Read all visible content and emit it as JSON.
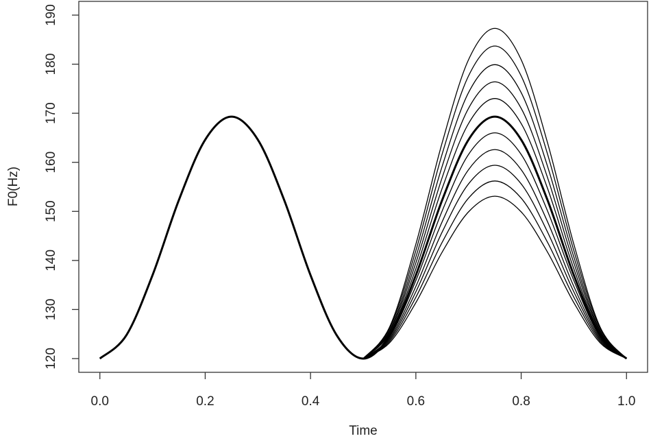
{
  "chart_data": {
    "type": "line",
    "xlabel": "Time",
    "ylabel": "F0(Hz)",
    "x": [
      0,
      0.05,
      0.1,
      0.15,
      0.2,
      0.25,
      0.3,
      0.35,
      0.4,
      0.45,
      0.5,
      0.55,
      0.6,
      0.65,
      0.7,
      0.75,
      0.8,
      0.85,
      0.9,
      0.95,
      1
    ],
    "series": [
      {
        "color": "#000000",
        "linewidth": 3,
        "values": [
          120,
          124.7,
          137.0,
          152.3,
          164.6,
          169.3,
          164.6,
          152.3,
          137.0,
          124.7,
          120,
          124.7,
          137.0,
          152.3,
          164.6,
          169.3,
          164.6,
          152.3,
          137.0,
          124.7,
          120
        ]
      },
      {
        "color": "#000000",
        "linewidth": 1.3,
        "values": [
          null,
          null,
          null,
          null,
          null,
          null,
          null,
          null,
          null,
          null,
          120,
          126.4,
          143.3,
          164.0,
          180.9,
          187.3,
          180.9,
          164.0,
          143.3,
          126.4,
          120
        ]
      },
      {
        "color": "#000000",
        "linewidth": 1.3,
        "values": [
          null,
          null,
          null,
          null,
          null,
          null,
          null,
          null,
          null,
          null,
          120,
          126.1,
          142.0,
          161.7,
          177.6,
          183.7,
          177.6,
          161.7,
          142.0,
          126.1,
          120
        ]
      },
      {
        "color": "#000000",
        "linewidth": 1.3,
        "values": [
          null,
          null,
          null,
          null,
          null,
          null,
          null,
          null,
          null,
          null,
          120,
          125.7,
          140.7,
          159.2,
          174.2,
          179.9,
          174.2,
          159.2,
          140.7,
          125.7,
          120
        ]
      },
      {
        "color": "#000000",
        "linewidth": 1.3,
        "values": [
          null,
          null,
          null,
          null,
          null,
          null,
          null,
          null,
          null,
          null,
          120,
          125.4,
          139.5,
          156.9,
          171.0,
          176.4,
          171.0,
          156.9,
          139.5,
          125.4,
          120
        ]
      },
      {
        "color": "#000000",
        "linewidth": 1.3,
        "values": [
          null,
          null,
          null,
          null,
          null,
          null,
          null,
          null,
          null,
          null,
          120,
          125.1,
          138.3,
          154.7,
          167.9,
          173.0,
          167.9,
          154.7,
          138.3,
          125.1,
          120
        ]
      },
      {
        "color": "#000000",
        "linewidth": 1.3,
        "values": [
          null,
          null,
          null,
          null,
          null,
          null,
          null,
          null,
          null,
          null,
          120,
          124.4,
          135.9,
          150.1,
          161.6,
          166.0,
          161.6,
          150.1,
          135.9,
          124.4,
          120
        ]
      },
      {
        "color": "#000000",
        "linewidth": 1.3,
        "values": [
          null,
          null,
          null,
          null,
          null,
          null,
          null,
          null,
          null,
          null,
          120,
          124.1,
          134.7,
          147.9,
          158.5,
          162.6,
          158.5,
          147.9,
          134.7,
          124.1,
          120
        ]
      },
      {
        "color": "#000000",
        "linewidth": 1.3,
        "values": [
          null,
          null,
          null,
          null,
          null,
          null,
          null,
          null,
          null,
          null,
          120,
          123.8,
          133.6,
          145.8,
          155.6,
          159.4,
          155.6,
          145.8,
          133.6,
          123.8,
          120
        ]
      },
      {
        "color": "#000000",
        "linewidth": 1.3,
        "values": [
          null,
          null,
          null,
          null,
          null,
          null,
          null,
          null,
          null,
          null,
          120,
          123.5,
          132.5,
          143.7,
          152.7,
          156.2,
          152.7,
          143.7,
          132.5,
          123.5,
          120
        ]
      },
      {
        "color": "#000000",
        "linewidth": 1.3,
        "values": [
          null,
          null,
          null,
          null,
          null,
          null,
          null,
          null,
          null,
          null,
          120,
          123.2,
          131.4,
          141.7,
          149.9,
          153.1,
          149.9,
          141.7,
          131.4,
          123.2,
          120
        ]
      }
    ],
    "xlim": [
      -0.04,
      1.04
    ],
    "xticks": [
      {
        "value": 0,
        "label": "0.0"
      },
      0.2,
      0.4,
      0.6,
      0.8,
      {
        "value": 1,
        "label": "1.0"
      }
    ],
    "ylim": [
      117.2,
      192.8
    ],
    "yticks": [
      120,
      130,
      140,
      150,
      160,
      170,
      180,
      190
    ],
    "grid": false
  }
}
